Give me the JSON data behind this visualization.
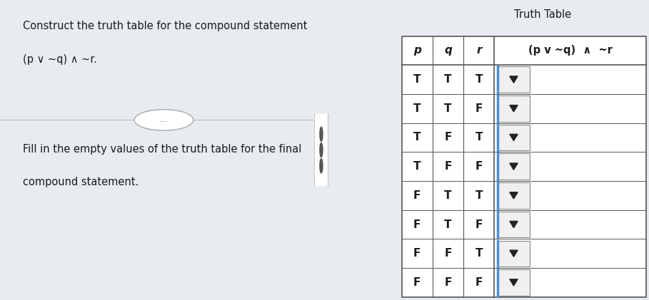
{
  "title_text": "Construct the truth table for the compound statement\n(p ∨ ~q) ∧ ~r.",
  "fill_text": "Fill in the empty values of the truth table for the final\ncompound statement.",
  "truth_table_title": "Truth Table",
  "rows": [
    [
      "T",
      "T",
      "T"
    ],
    [
      "T",
      "T",
      "F"
    ],
    [
      "T",
      "F",
      "T"
    ],
    [
      "T",
      "F",
      "F"
    ],
    [
      "F",
      "T",
      "T"
    ],
    [
      "F",
      "T",
      "F"
    ],
    [
      "F",
      "F",
      "T"
    ],
    [
      "F",
      "F",
      "F"
    ]
  ],
  "bg_left": "#dce3ea",
  "bg_right": "#e8ecf0",
  "table_bg": "#ffffff",
  "table_border": "#555555",
  "blue_border": "#4a8fd4",
  "text_color": "#1a1a1a",
  "divider_color": "#bbbbbb",
  "dots_color": "#555555"
}
